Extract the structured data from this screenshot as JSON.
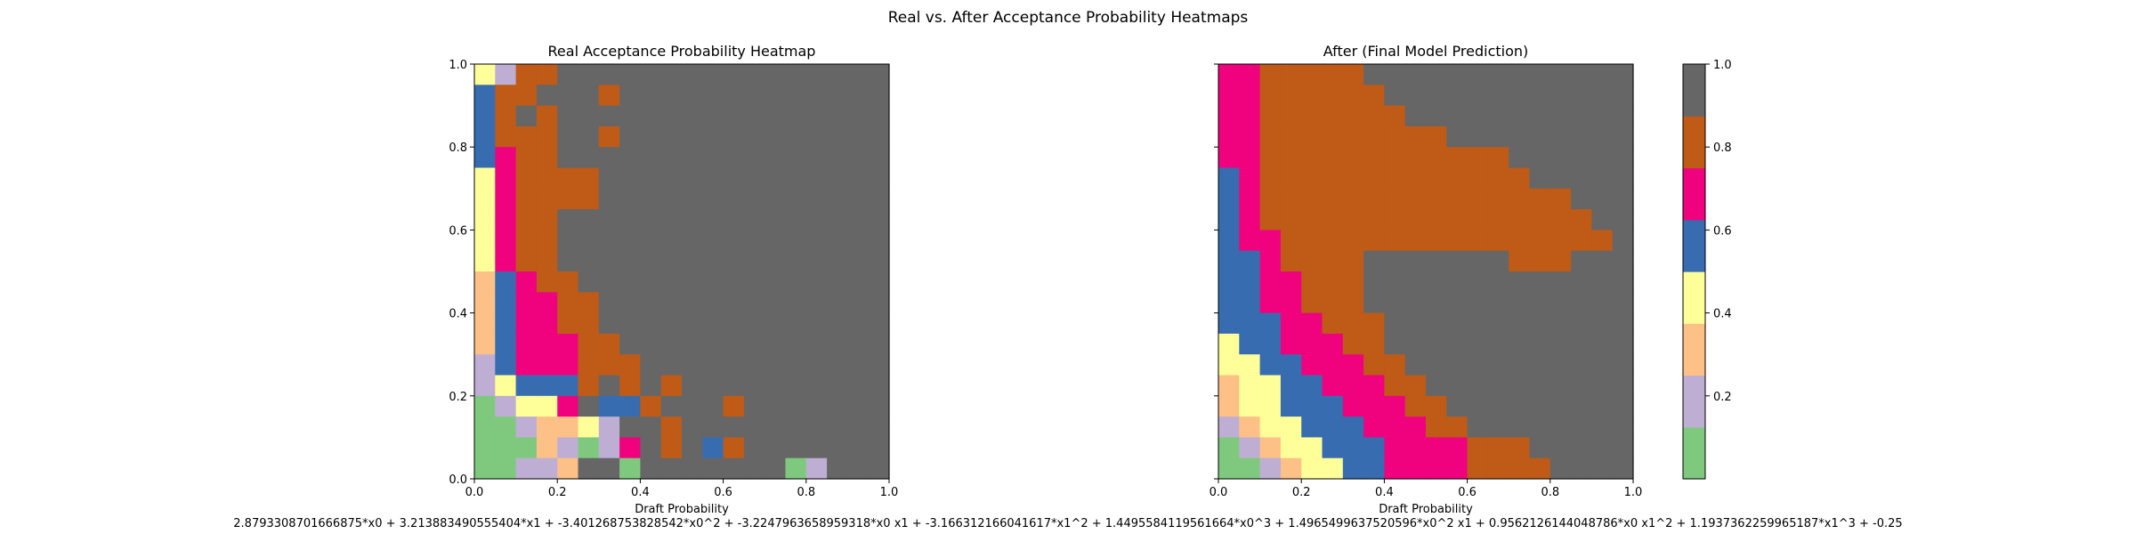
{
  "figure": {
    "title": "Real vs. After Acceptance Probability Heatmaps",
    "formula": "2.8793308701666875*x0 + 3.213883490555404*x1 + -3.401268753828542*x0^2 + -3.2247963658959318*x0 x1 + -3.166312166041617*x1^2 + 1.4495584119561664*x0^3 + 1.4965499637520596*x0^2 x1 + 0.9562126144048786*x0 x1^2 + 1.1937362259965187*x1^3 + -0.25"
  },
  "palette": [
    "#7fc97f",
    "#beaed4",
    "#fdc086",
    "#ffff99",
    "#386cb0",
    "#f0027f",
    "#bf5b17",
    "#666666"
  ],
  "chart_data": [
    {
      "type": "heatmap",
      "title": "Real Acceptance Probability Heatmap",
      "xlabel": "Draft Probability",
      "ylabel": "",
      "xlim": [
        0,
        1
      ],
      "ylim": [
        0,
        1
      ],
      "xticks": [
        "0.0",
        "0.2",
        "0.4",
        "0.6",
        "0.8",
        "1.0"
      ],
      "yticks": [
        "0.0",
        "0.2",
        "0.4",
        "0.6",
        "0.8",
        "1.0"
      ],
      "grid": false,
      "cells_y_top_to_bottom": [
        "31667777777777777777",
        "46677767777777777777",
        "46767777777777777777",
        "46667767777777777777",
        "45667777777777777777",
        "35666677777777777777",
        "35666677777777777777",
        "35667777777777777777",
        "35667777777777777777",
        "35667777777777777777",
        "24566777777777777777",
        "24556677777777777777",
        "24556677777777777777",
        "24555667777777777777",
        "14555666777777777777",
        "13444676767777777777",
        "01335744677767777777",
        "00122317767777777777",
        "00021015767467777777",
        "00112770777777701777"
      ]
    },
    {
      "type": "heatmap",
      "title": "After (Final Model Prediction)",
      "xlabel": "Draft Probability",
      "ylabel": "",
      "xlim": [
        0,
        1
      ],
      "ylim": [
        0,
        1
      ],
      "xticks": [
        "0.0",
        "0.2",
        "0.4",
        "0.6",
        "0.8",
        "1.0"
      ],
      "yticks": [
        "0.0",
        "0.2",
        "0.4",
        "0.6",
        "0.8",
        "1.0"
      ],
      "grid": false,
      "cells_y_top_to_bottom": [
        "55666667777777777777",
        "55666666777777777777",
        "55666666677777777777",
        "55666666666777777777",
        "55666666666666777777",
        "45666666666666677777",
        "45666666666666666777",
        "45666666666666666677",
        "45566666666666666667",
        "44566667777777666777",
        "44556667777777777777",
        "44556667777777777777",
        "44455666777777777777",
        "34455566777777777777",
        "33445556677777777777",
        "23344555667777777777",
        "23344455566777777777",
        "12334445556677777777",
        "01233444555566677777",
        "00123344555566667777"
      ]
    },
    {
      "type": "colorbar",
      "ticks": [
        "0.2",
        "0.4",
        "0.6",
        "0.8",
        "1.0"
      ],
      "range": [
        0,
        1
      ]
    }
  ]
}
